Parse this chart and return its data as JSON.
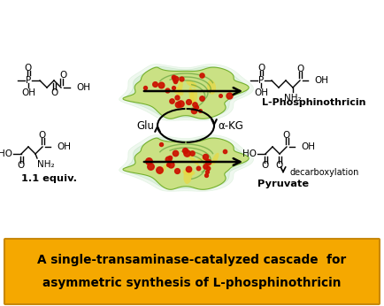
{
  "title_line1": "A single-transaminase-catalyzed cascade  for",
  "title_line2": "asymmetric synthesis of L-phosphinothricin",
  "title_bg": "#F5A800",
  "title_border": "#C8880A",
  "bg_color": "#FFFFFF",
  "label_lphosphinothricin": "L-Phosphinothricin",
  "label_pyruvate": "Pyruvate",
  "label_equiv": "1.1 equiv.",
  "label_glu": "Glu",
  "label_akg": "α-KG",
  "label_decarboxylation": "decarboxylation",
  "enzyme_color1": "#C8E07A",
  "enzyme_color2": "#A8D060",
  "enzyme_edge": "#6AAA20",
  "enzyme_red": "#CC1100",
  "enzyme_yellow": "#E8D840"
}
